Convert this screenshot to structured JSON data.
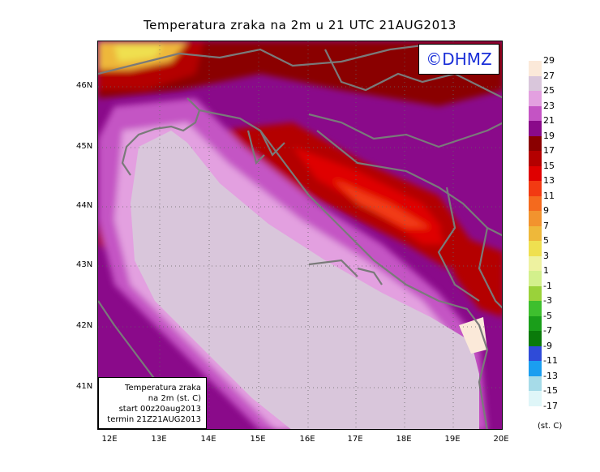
{
  "title": "Temperatura zraka na 2m u 21 UTC 21AUG2013",
  "badge": "©DHMZ",
  "infobox": {
    "line1": "Temperatura zraka",
    "line2": "na 2m (st. C)",
    "line3": "start 00z20aug2013",
    "line4": "termin 21Z21AUG2013"
  },
  "lat_labels": [
    "46N",
    "45N",
    "44N",
    "43N",
    "42N",
    "41N"
  ],
  "lon_labels": [
    "12E",
    "13E",
    "14E",
    "15E",
    "16E",
    "17E",
    "18E",
    "19E",
    "20E"
  ],
  "legend": {
    "units": "(st. C)",
    "labels": [
      "29",
      "27",
      "25",
      "23",
      "21",
      "19",
      "17",
      "15",
      "13",
      "11",
      "9",
      "7",
      "5",
      "3",
      "1",
      "-1",
      "-3",
      "-5",
      "-7",
      "-9",
      "-11",
      "-13",
      "-15",
      "-17"
    ],
    "colors": [
      "#fbe9d9",
      "#d9c6db",
      "#e3a0e0",
      "#c454c4",
      "#8a0a8a",
      "#8a0000",
      "#b40000",
      "#df0000",
      "#f23a12",
      "#f46a1e",
      "#f2932e",
      "#eeb83a",
      "#efe050",
      "#eef2a0",
      "#d3f08c",
      "#9ad23a",
      "#3ebf2e",
      "#1a9e1a",
      "#0a7a0a",
      "#2f4bd8",
      "#1b9ef0",
      "#a6dbe8",
      "#dff6f8"
    ]
  }
}
